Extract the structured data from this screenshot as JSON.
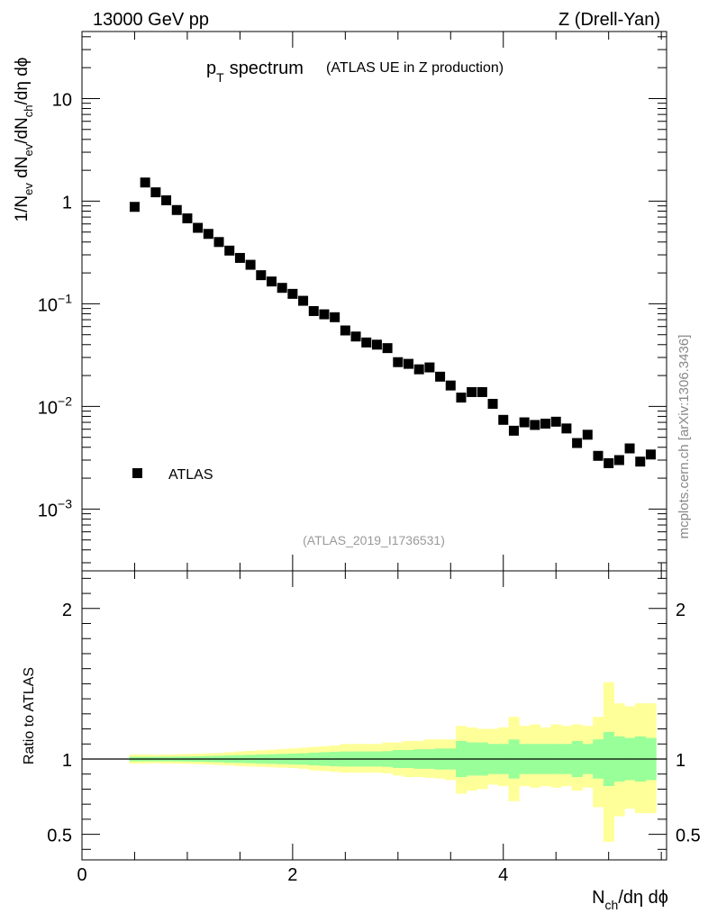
{
  "header": {
    "left": "13000 GeV pp",
    "right": "Z (Drell-Yan)"
  },
  "title": {
    "main": "p",
    "sub": "T",
    "main2": "spectrum",
    "note": "(ATLAS UE in Z production)"
  },
  "watermark": "mcplots.cern.ch [arXiv:1306.3436]",
  "analysis_id": "(ATLAS_2019_I1736531)",
  "colors": {
    "band_outer": "#ffff99",
    "band_inner": "#99ff99",
    "marker": "#000000"
  },
  "chart_data": [
    {
      "type": "scatter",
      "yscale": "log",
      "ylabel": {
        "p1": "1/N",
        "s1": "ev",
        "p2": " dN",
        "s2": "ev",
        "p3": "/dN",
        "s3": "ch",
        "p4": "/dη dϕ"
      },
      "xlim": [
        0,
        5.55
      ],
      "ylim": [
        0.00025,
        45
      ],
      "yticks": [
        {
          "value": 0.001,
          "base": "10",
          "exp": "−3"
        },
        {
          "value": 0.01,
          "base": "10",
          "exp": "−2"
        },
        {
          "value": 0.1,
          "base": "10",
          "exp": "−1"
        },
        {
          "value": 1,
          "base": "1",
          "exp": ""
        },
        {
          "value": 10,
          "base": "10",
          "exp": ""
        }
      ],
      "legend": {
        "label": "ATLAS",
        "position": "bottom-left"
      },
      "series": [
        {
          "name": "ATLAS",
          "x": [
            0.5,
            0.6,
            0.7,
            0.8,
            0.9,
            1.0,
            1.1,
            1.2,
            1.3,
            1.4,
            1.5,
            1.6,
            1.7,
            1.8,
            1.9,
            2.0,
            2.1,
            2.2,
            2.3,
            2.4,
            2.5,
            2.6,
            2.7,
            2.8,
            2.9,
            3.0,
            3.1,
            3.2,
            3.3,
            3.4,
            3.5,
            3.6,
            3.7,
            3.8,
            3.9,
            4.0,
            4.1,
            4.2,
            4.3,
            4.4,
            4.5,
            4.6,
            4.7,
            4.8,
            4.9,
            5.0,
            5.1,
            5.2,
            5.3,
            5.4
          ],
          "y": [
            0.88,
            1.52,
            1.22,
            1.02,
            0.82,
            0.68,
            0.55,
            0.48,
            0.4,
            0.33,
            0.28,
            0.24,
            0.19,
            0.165,
            0.143,
            0.125,
            0.107,
            0.085,
            0.079,
            0.074,
            0.055,
            0.048,
            0.042,
            0.04,
            0.037,
            0.027,
            0.026,
            0.023,
            0.024,
            0.0195,
            0.016,
            0.0122,
            0.0138,
            0.0138,
            0.0106,
            0.0074,
            0.0058,
            0.007,
            0.0066,
            0.0068,
            0.0071,
            0.0061,
            0.0044,
            0.0053,
            0.0033,
            0.0028,
            0.003,
            0.0039,
            0.0029,
            0.0034
          ]
        }
      ]
    },
    {
      "type": "area",
      "ylabel": "Ratio to ATLAS",
      "xlabel": {
        "p1": "N",
        "s1": "ch",
        "p2": "/dη dϕ"
      },
      "xlim": [
        0,
        5.55
      ],
      "ylim": [
        0.33,
        2.25
      ],
      "xticks": [
        0,
        2,
        4
      ],
      "yticks": [
        0.5,
        1,
        2
      ],
      "reference_line": 1,
      "bins": [
        0.45,
        0.55,
        0.65,
        0.75,
        0.85,
        0.95,
        1.05,
        1.15,
        1.25,
        1.35,
        1.45,
        1.55,
        1.65,
        1.75,
        1.85,
        1.95,
        2.05,
        2.15,
        2.25,
        2.35,
        2.45,
        2.55,
        2.65,
        2.75,
        2.85,
        2.95,
        3.05,
        3.15,
        3.25,
        3.35,
        3.45,
        3.55,
        3.65,
        3.75,
        3.85,
        3.95,
        4.05,
        4.15,
        4.25,
        4.35,
        4.45,
        4.55,
        4.65,
        4.75,
        4.85,
        4.95,
        5.05,
        5.15,
        5.25,
        5.35,
        5.45
      ],
      "bands": [
        {
          "name": "outer",
          "lo": [
            0.97,
            0.97,
            0.972,
            0.97,
            0.969,
            0.968,
            0.966,
            0.963,
            0.96,
            0.957,
            0.953,
            0.95,
            0.948,
            0.945,
            0.942,
            0.94,
            0.935,
            0.925,
            0.92,
            0.915,
            0.91,
            0.91,
            0.91,
            0.91,
            0.905,
            0.89,
            0.88,
            0.88,
            0.875,
            0.87,
            0.86,
            0.77,
            0.79,
            0.8,
            0.83,
            0.82,
            0.72,
            0.82,
            0.81,
            0.82,
            0.81,
            0.82,
            0.79,
            0.81,
            0.68,
            0.45,
            0.62,
            0.67,
            0.64,
            0.64,
            0.6
          ],
          "hi": [
            1.03,
            1.03,
            1.028,
            1.03,
            1.031,
            1.033,
            1.035,
            1.038,
            1.04,
            1.045,
            1.05,
            1.054,
            1.058,
            1.062,
            1.066,
            1.07,
            1.075,
            1.08,
            1.085,
            1.09,
            1.1,
            1.1,
            1.1,
            1.1,
            1.11,
            1.11,
            1.12,
            1.12,
            1.13,
            1.13,
            1.13,
            1.22,
            1.21,
            1.2,
            1.2,
            1.21,
            1.28,
            1.22,
            1.23,
            1.21,
            1.23,
            1.22,
            1.23,
            1.22,
            1.28,
            1.51,
            1.37,
            1.35,
            1.37,
            1.37,
            1.35
          ]
        },
        {
          "name": "inner",
          "lo": [
            0.985,
            0.985,
            0.985,
            0.985,
            0.984,
            0.983,
            0.982,
            0.98,
            0.978,
            0.976,
            0.974,
            0.972,
            0.97,
            0.968,
            0.966,
            0.964,
            0.962,
            0.958,
            0.955,
            0.952,
            0.95,
            0.95,
            0.95,
            0.95,
            0.948,
            0.94,
            0.94,
            0.935,
            0.935,
            0.93,
            0.93,
            0.88,
            0.89,
            0.89,
            0.9,
            0.9,
            0.87,
            0.9,
            0.9,
            0.9,
            0.9,
            0.9,
            0.88,
            0.9,
            0.87,
            0.82,
            0.85,
            0.86,
            0.85,
            0.86,
            0.86
          ],
          "hi": [
            1.015,
            1.015,
            1.015,
            1.015,
            1.016,
            1.017,
            1.018,
            1.02,
            1.022,
            1.024,
            1.026,
            1.028,
            1.03,
            1.032,
            1.034,
            1.036,
            1.038,
            1.042,
            1.045,
            1.048,
            1.05,
            1.05,
            1.05,
            1.05,
            1.052,
            1.06,
            1.06,
            1.065,
            1.065,
            1.07,
            1.07,
            1.12,
            1.11,
            1.11,
            1.1,
            1.1,
            1.13,
            1.1,
            1.1,
            1.1,
            1.1,
            1.1,
            1.12,
            1.1,
            1.13,
            1.18,
            1.15,
            1.14,
            1.15,
            1.14,
            1.14
          ]
        }
      ]
    }
  ]
}
